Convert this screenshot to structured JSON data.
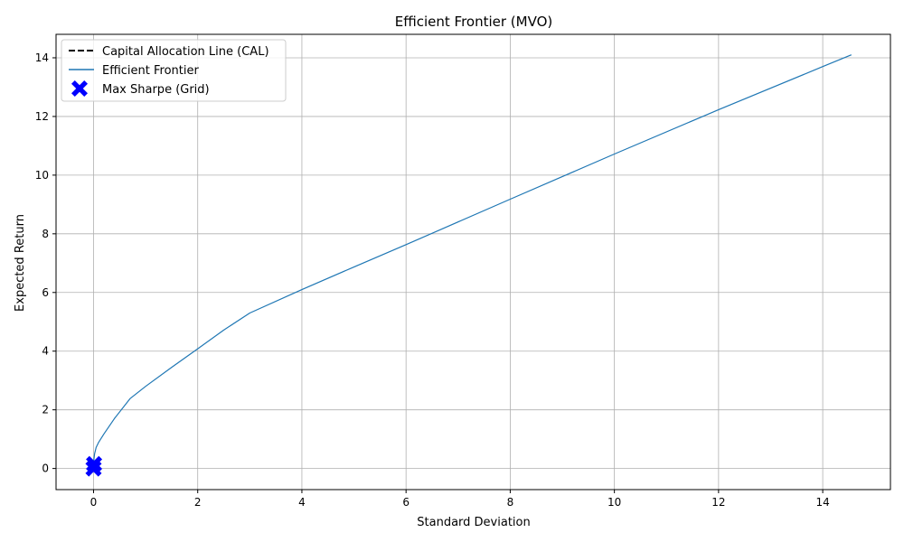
{
  "chart_data": {
    "type": "line",
    "title": "Efficient Frontier (MVO)",
    "xlabel": "Standard Deviation",
    "ylabel": "Expected Return",
    "xlim": [
      -0.72,
      15.3
    ],
    "ylim": [
      -0.72,
      14.8
    ],
    "xticks": [
      0,
      2,
      4,
      6,
      8,
      10,
      12,
      14
    ],
    "yticks": [
      0,
      2,
      4,
      6,
      8,
      10,
      12,
      14
    ],
    "grid": true,
    "legend_position": "upper-left",
    "series": [
      {
        "name": "Capital Allocation Line (CAL)",
        "type": "line",
        "style": "dashed",
        "color": "#000000",
        "x": [
          0,
          0.02
        ],
        "y": [
          0.1,
          0.12
        ]
      },
      {
        "name": "Efficient Frontier",
        "type": "line",
        "style": "solid",
        "color": "#1f77b4",
        "x": [
          0.0,
          0.02,
          0.05,
          0.1,
          0.2,
          0.4,
          0.7,
          1.0,
          1.5,
          2.0,
          2.5,
          3.0,
          4.0,
          5.0,
          6.0,
          8.0,
          10.0,
          12.0,
          14.0,
          14.55
        ],
        "y": [
          0.2,
          0.5,
          0.72,
          0.9,
          1.18,
          1.7,
          2.38,
          2.8,
          3.45,
          4.08,
          4.72,
          5.3,
          6.1,
          6.87,
          7.63,
          9.18,
          10.72,
          12.23,
          13.7,
          14.1
        ]
      },
      {
        "name": "Max Sharpe (Grid)",
        "type": "scatter",
        "marker": "X",
        "color": "#0000ff",
        "x": [
          0.0,
          0.01
        ],
        "y": [
          0.0,
          0.15
        ]
      }
    ]
  }
}
